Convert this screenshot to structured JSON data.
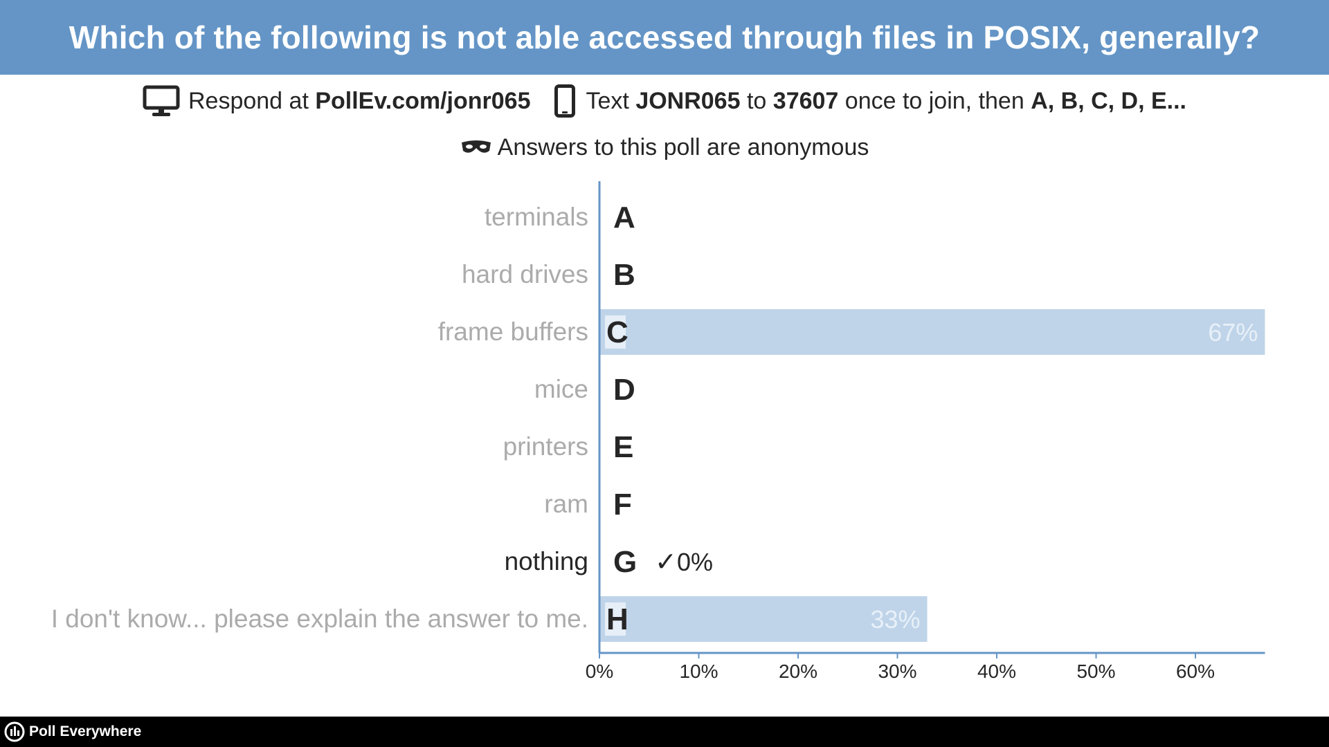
{
  "header": {
    "question": "Which of the following is not able accessed through files in POSIX, generally?"
  },
  "instructions": {
    "respond_prefix": "Respond at",
    "url": "PollEv.com/jonr065",
    "text_prefix": "Text",
    "code": "JONR065",
    "to": "to",
    "number": "37607",
    "join_text": "once to join, then",
    "options": "A, B, C, D, E..."
  },
  "anonymous_text": "Answers to this poll are anonymous",
  "footer": {
    "brand": "Poll Everywhere"
  },
  "colors": {
    "header_bg": "#6495c6",
    "bar": "#bfd4e9",
    "axis": "#6495c6",
    "label_muted": "#ababab",
    "label_correct": "#262626"
  },
  "chart_data": {
    "type": "bar",
    "orientation": "horizontal",
    "categories": [
      "terminals",
      "hard drives",
      "frame buffers",
      "mice",
      "printers",
      "ram",
      "nothing",
      "I don't know... please explain the answer to me."
    ],
    "letters": [
      "A",
      "B",
      "C",
      "D",
      "E",
      "F",
      "G",
      "H"
    ],
    "values": [
      0,
      0,
      67,
      0,
      0,
      0,
      0,
      33
    ],
    "value_labels": [
      "",
      "",
      "67%",
      "",
      "",
      "",
      "0%",
      "33%"
    ],
    "correct_index": 6,
    "correct_mark": "✓",
    "x_ticks": [
      "0%",
      "10%",
      "20%",
      "30%",
      "40%",
      "50%",
      "60%"
    ],
    "xlim": [
      0,
      67
    ],
    "grid": false
  }
}
